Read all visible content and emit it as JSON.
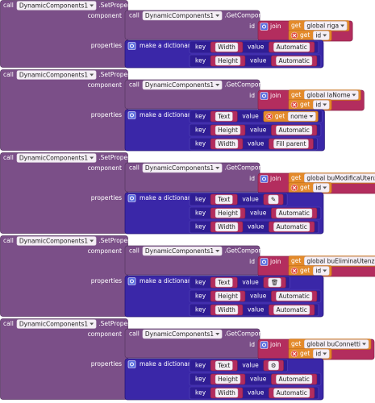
{
  "blocks": [
    {
      "call": "call",
      "component": "DynamicComponents1",
      "method": ".SetProperties",
      "component_label": "component",
      "get_component": {
        "call": "call",
        "component": "DynamicComponents1",
        "method": ".GetComponent",
        "id_label": "id",
        "join": {
          "label": "join",
          "items": [
            {
              "get": "get",
              "name": "global riga"
            },
            {
              "get": "get",
              "name": "id"
            }
          ]
        }
      },
      "properties_label": "properties",
      "dictionary": {
        "label": "make a dictionary",
        "pairs": [
          {
            "key_label": "key",
            "key": "Width",
            "value_label": "value",
            "value": {
              "text": "Automatic"
            }
          },
          {
            "key_label": "key",
            "key": "Height",
            "value_label": "value",
            "value": {
              "text": "Automatic"
            }
          }
        ]
      }
    },
    {
      "call": "call",
      "component": "DynamicComponents1",
      "method": ".SetProperties",
      "component_label": "component",
      "get_component": {
        "call": "call",
        "component": "DynamicComponents1",
        "method": ".GetComponent",
        "id_label": "id",
        "join": {
          "label": "join",
          "items": [
            {
              "get": "get",
              "name": "global laNome"
            },
            {
              "get": "get",
              "name": "id"
            }
          ]
        }
      },
      "properties_label": "properties",
      "dictionary": {
        "label": "make a dictionary",
        "pairs": [
          {
            "key_label": "key",
            "key": "Text",
            "value_label": "value",
            "value": {
              "get": "get",
              "name": "nome"
            }
          },
          {
            "key_label": "key",
            "key": "Height",
            "value_label": "value",
            "value": {
              "text": "Automatic"
            }
          },
          {
            "key_label": "key",
            "key": "Width",
            "value_label": "value",
            "value": {
              "text": "Fill parent"
            }
          }
        ]
      }
    },
    {
      "call": "call",
      "component": "DynamicComponents1",
      "method": ".SetProperties",
      "component_label": "component",
      "get_component": {
        "call": "call",
        "component": "DynamicComponents1",
        "method": ".GetComponent",
        "id_label": "id",
        "join": {
          "label": "join",
          "items": [
            {
              "get": "get",
              "name": "global buModificaUtenza"
            },
            {
              "get": "get",
              "name": "id"
            }
          ]
        }
      },
      "properties_label": "properties",
      "dictionary": {
        "label": "make a dictionary",
        "pairs": [
          {
            "key_label": "key",
            "key": "Text",
            "value_label": "value",
            "value": {
              "text": "✎"
            }
          },
          {
            "key_label": "key",
            "key": "Height",
            "value_label": "value",
            "value": {
              "text": "Automatic"
            }
          },
          {
            "key_label": "key",
            "key": "Width",
            "value_label": "value",
            "value": {
              "text": "Automatic"
            }
          }
        ]
      }
    },
    {
      "call": "call",
      "component": "DynamicComponents1",
      "method": ".SetProperties",
      "component_label": "component",
      "get_component": {
        "call": "call",
        "component": "DynamicComponents1",
        "method": ".GetComponent",
        "id_label": "id",
        "join": {
          "label": "join",
          "items": [
            {
              "get": "get",
              "name": "global buEliminaUtenza"
            },
            {
              "get": "get",
              "name": "id"
            }
          ]
        }
      },
      "properties_label": "properties",
      "dictionary": {
        "label": "make a dictionary",
        "pairs": [
          {
            "key_label": "key",
            "key": "Text",
            "value_label": "value",
            "value": {
              "text": "🗑"
            }
          },
          {
            "key_label": "key",
            "key": "Height",
            "value_label": "value",
            "value": {
              "text": "Automatic"
            }
          },
          {
            "key_label": "key",
            "key": "Width",
            "value_label": "value",
            "value": {
              "text": "Automatic"
            }
          }
        ]
      }
    },
    {
      "call": "call",
      "component": "DynamicComponents1",
      "method": ".SetProperties",
      "component_label": "component",
      "get_component": {
        "call": "call",
        "component": "DynamicComponents1",
        "method": ".GetComponent",
        "id_label": "id",
        "join": {
          "label": "join",
          "items": [
            {
              "get": "get",
              "name": "global buConnetti"
            },
            {
              "get": "get",
              "name": "id"
            }
          ]
        }
      },
      "properties_label": "properties",
      "dictionary": {
        "label": "make a dictionary",
        "pairs": [
          {
            "key_label": "key",
            "key": "Text",
            "value_label": "value",
            "value": {
              "text": "⚙"
            }
          },
          {
            "key_label": "key",
            "key": "Height",
            "value_label": "value",
            "value": {
              "text": "Automatic"
            }
          },
          {
            "key_label": "key",
            "key": "Width",
            "value_label": "value",
            "value": {
              "text": "Automatic"
            }
          }
        ]
      }
    }
  ]
}
